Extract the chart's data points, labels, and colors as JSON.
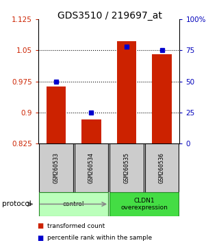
{
  "title": "GDS3510 / 219697_at",
  "samples": [
    "GSM260533",
    "GSM260534",
    "GSM260535",
    "GSM260536"
  ],
  "bar_values": [
    0.962,
    0.883,
    1.072,
    1.04
  ],
  "percentile_values": [
    50,
    25,
    78,
    75
  ],
  "bar_color": "#cc2200",
  "percentile_color": "#0000cc",
  "bar_bottom": 0.825,
  "ylim_left": [
    0.825,
    1.125
  ],
  "ylim_right": [
    0,
    100
  ],
  "yticks_left": [
    0.825,
    0.9,
    0.975,
    1.05,
    1.125
  ],
  "ytick_labels_left": [
    "0.825",
    "0.9",
    "0.975",
    "1.05",
    "1.125"
  ],
  "yticks_right": [
    0,
    25,
    50,
    75,
    100
  ],
  "ytick_labels_right": [
    "0",
    "25",
    "50",
    "75",
    "100%"
  ],
  "dotted_lines": [
    0.9,
    0.975,
    1.05
  ],
  "groups": [
    {
      "label": "control",
      "indices": [
        0,
        1
      ],
      "color": "#bbffbb"
    },
    {
      "label": "CLDN1\noverexpression",
      "indices": [
        2,
        3
      ],
      "color": "#44dd44"
    }
  ],
  "protocol_label": "protocol",
  "legend_items": [
    {
      "color": "#cc2200",
      "label": "transformed count"
    },
    {
      "color": "#0000cc",
      "label": "percentile rank within the sample"
    }
  ],
  "sample_box_color": "#cccccc",
  "title_fontsize": 10,
  "axis_color_left": "#cc2200",
  "axis_color_right": "#0000bb"
}
